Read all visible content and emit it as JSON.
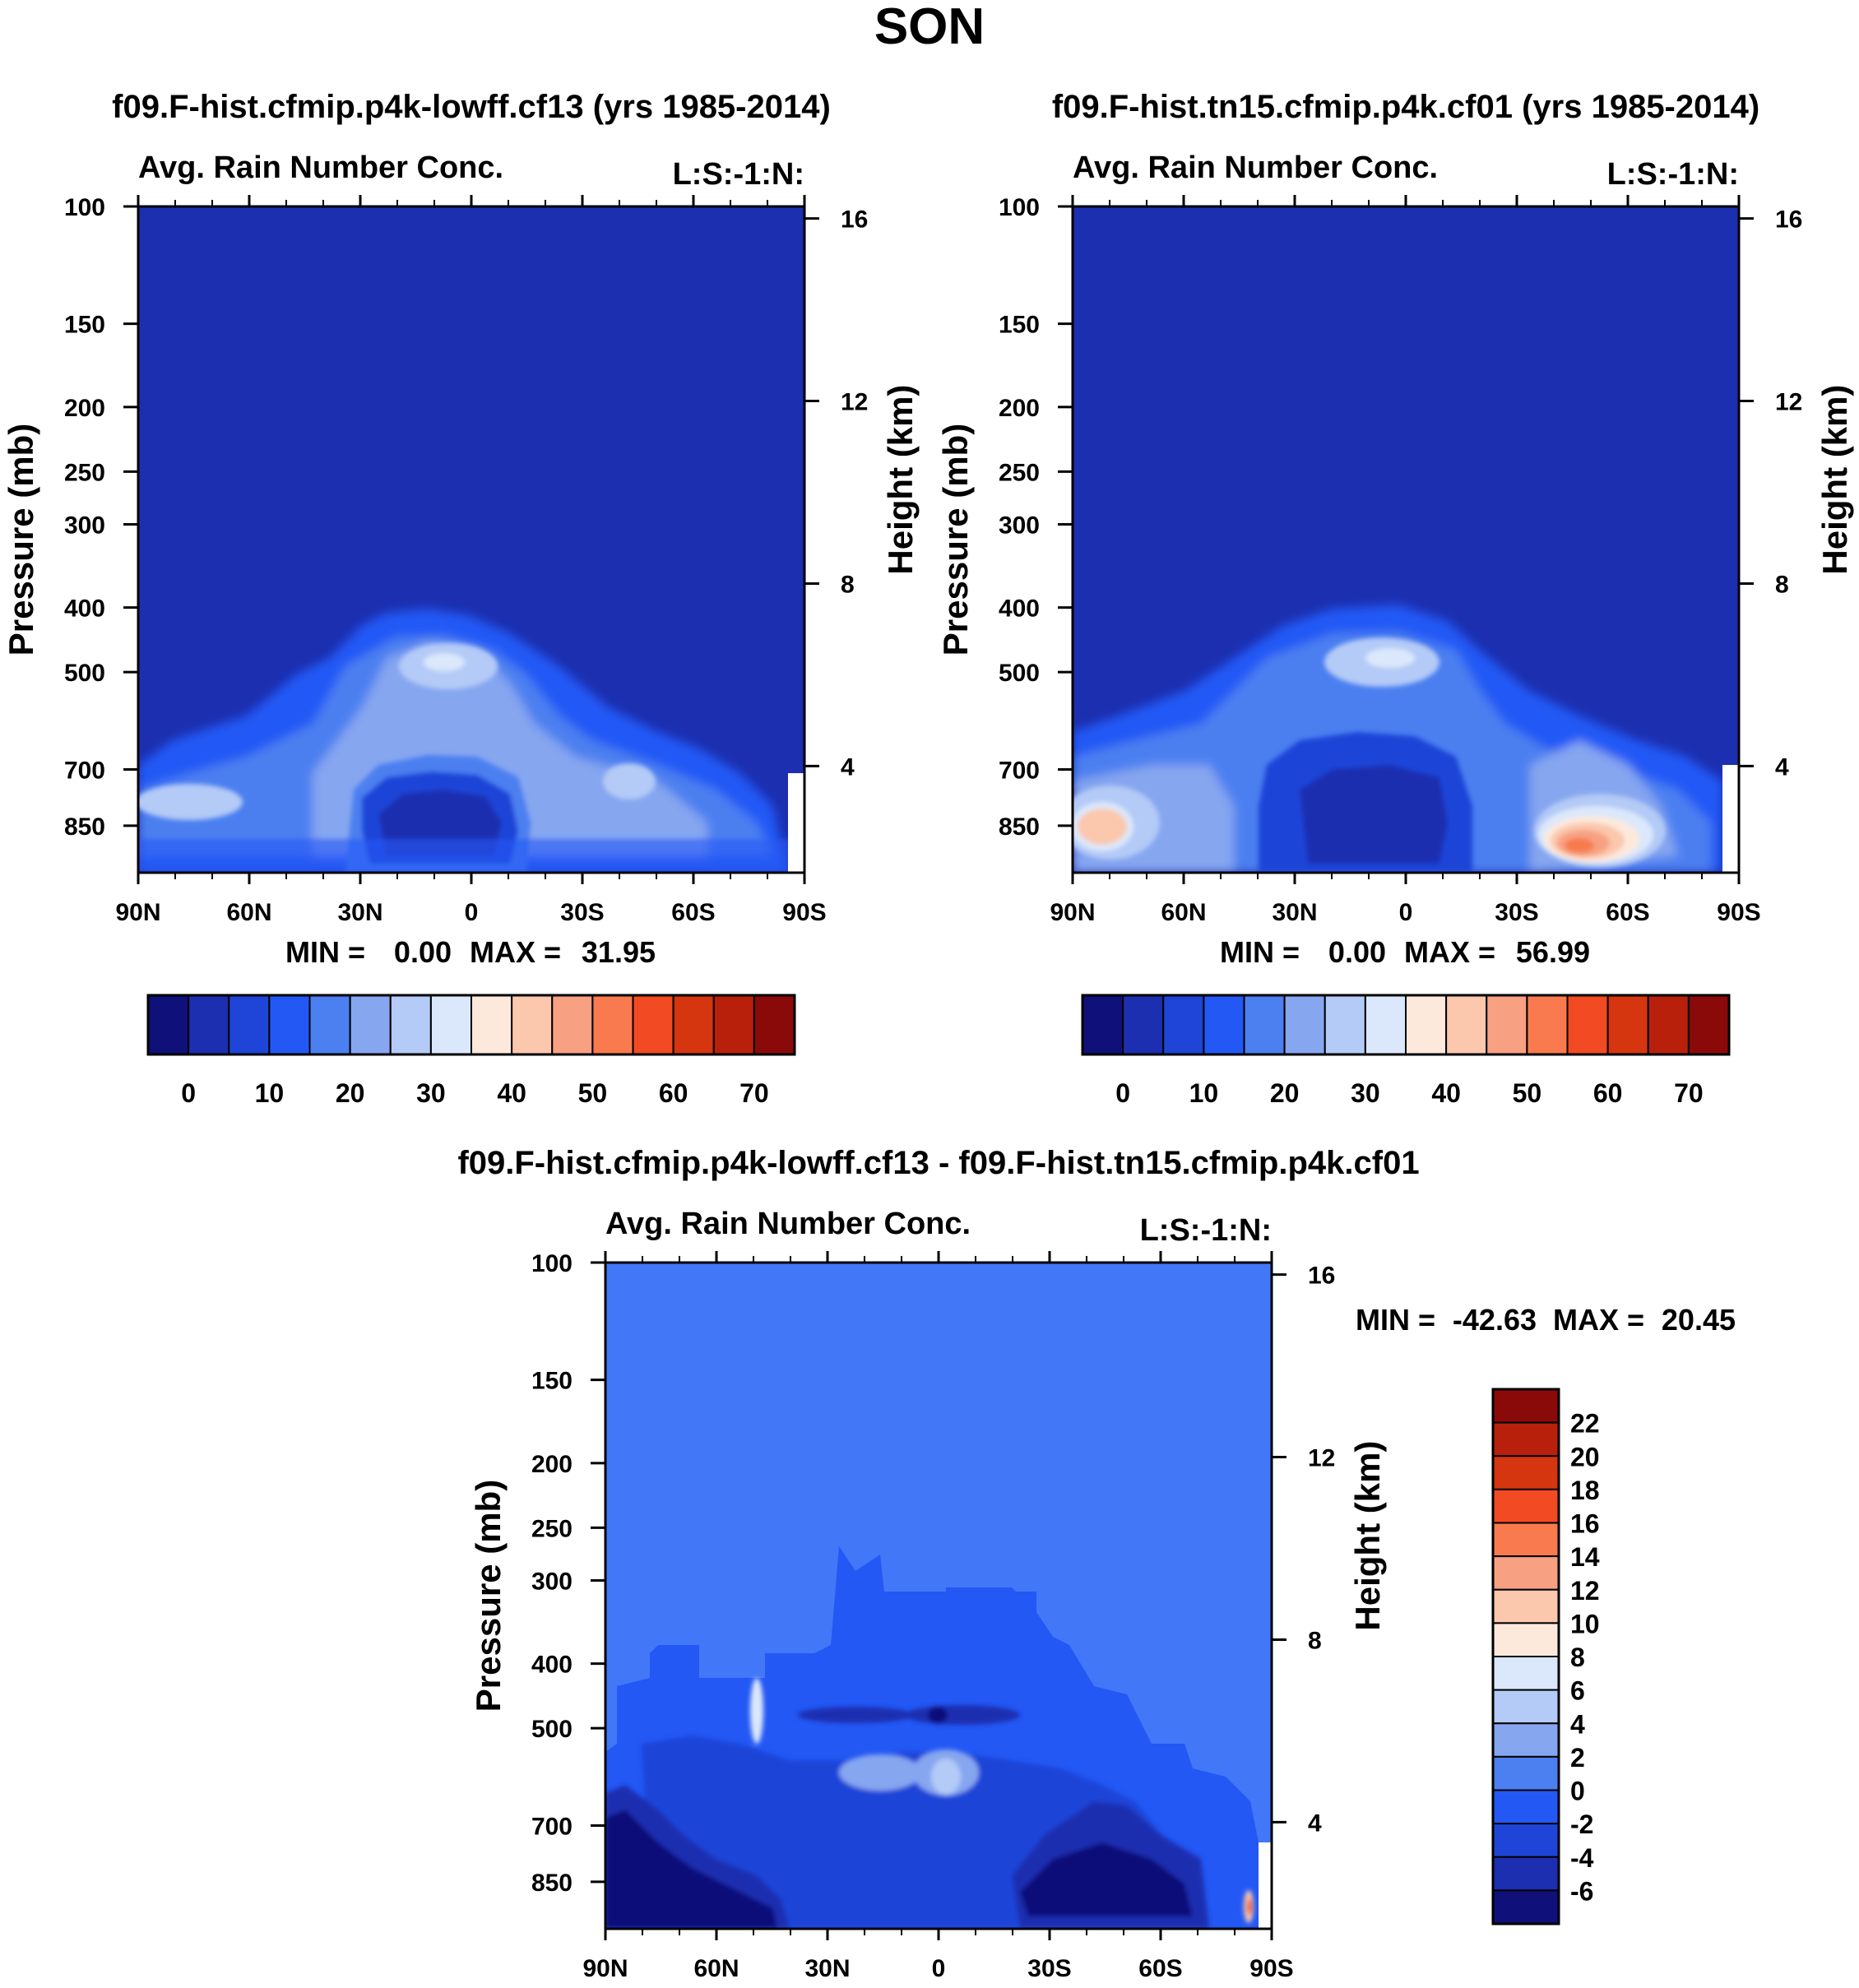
{
  "figure": {
    "title": "SON"
  },
  "palette": {
    "abs_levels": [
      "#10107a",
      "#1c2fb0",
      "#1f45d8",
      "#2358f5",
      "#4c7ff0",
      "#86a6f0",
      "#b4caf7",
      "#dbe8fb",
      "#fde9dc",
      "#fbc7ad",
      "#f7a182",
      "#f87a4e",
      "#f24a22",
      "#d5350f",
      "#b8200c",
      "#8a0a0a"
    ],
    "diff_levels": [
      "#10107a",
      "#1c2fb0",
      "#1f45d8",
      "#2358f5",
      "#4c7ff0",
      "#86a6f0",
      "#b4caf7",
      "#dbe8fb",
      "#fde9dc",
      "#fbc7ad",
      "#f7a182",
      "#f87a4e",
      "#f24a22",
      "#d5350f",
      "#b8200c",
      "#8a0a0a"
    ],
    "diff_background": "#4277f7"
  },
  "chart_data": [
    {
      "type": "heatmap",
      "title": "f09.F-hist.cfmip.p4k-lowff.cf13 (yrs 1985-2014)",
      "left_label": "Avg. Rain Number Conc.",
      "right_label": "L:S:-1:N:",
      "ylabel": "Pressure (mb)",
      "y2label": "Height (km)",
      "x_ticks": [
        "90N",
        "60N",
        "30N",
        "0",
        "30S",
        "60S",
        "90S"
      ],
      "y_ticks": [
        "100",
        "150",
        "200",
        "250",
        "300",
        "400",
        "500",
        "700",
        "850"
      ],
      "y2_ticks": [
        "16",
        "12",
        "8",
        "4"
      ],
      "stats": {
        "min_label": "MIN =",
        "min": "0.00",
        "max_label": "MAX =",
        "max": "31.95"
      },
      "colorbar": {
        "orientation": "horizontal",
        "labels": [
          "0",
          "10",
          "20",
          "30",
          "40",
          "50",
          "60",
          "70"
        ]
      },
      "features": [
        {
          "lat": 5,
          "p": 510,
          "level": 7
        },
        {
          "lat": -40,
          "p": 680,
          "level": 5
        },
        {
          "lat": 75,
          "p": 700,
          "level": 5
        },
        {
          "lat": 30,
          "p": 780,
          "level": 0
        }
      ]
    },
    {
      "type": "heatmap",
      "title": "f09.F-hist.tn15.cfmip.p4k.cf01 (yrs 1985-2014)",
      "left_label": "Avg. Rain Number Conc.",
      "right_label": "L:S:-1:N:",
      "ylabel": "Pressure (mb)",
      "y2label": "Height (km)",
      "x_ticks": [
        "90N",
        "60N",
        "30N",
        "0",
        "30S",
        "60S",
        "90S"
      ],
      "y_ticks": [
        "100",
        "150",
        "200",
        "250",
        "300",
        "400",
        "500",
        "700",
        "850"
      ],
      "y2_ticks": [
        "16",
        "12",
        "8",
        "4"
      ],
      "stats": {
        "min_label": "MIN =",
        "min": "0.00",
        "max_label": "MAX =",
        "max": "56.99"
      },
      "colorbar": {
        "orientation": "horizontal",
        "labels": [
          "0",
          "10",
          "20",
          "30",
          "40",
          "50",
          "60",
          "70"
        ]
      },
      "features": [
        {
          "lat": 0,
          "p": 510,
          "level": 7
        },
        {
          "lat": -47,
          "p": 830,
          "level": 11
        },
        {
          "lat": 82,
          "p": 800,
          "level": 9
        },
        {
          "lat": 25,
          "p": 780,
          "level": 1
        }
      ]
    },
    {
      "type": "heatmap",
      "title": "f09.F-hist.cfmip.p4k-lowff.cf13 - f09.F-hist.tn15.cfmip.p4k.cf01",
      "left_label": "Avg. Rain Number Conc.",
      "right_label": "L:S:-1:N:",
      "ylabel": "Pressure (mb)",
      "y2label": "Height (km)",
      "x_ticks": [
        "90N",
        "60N",
        "30N",
        "0",
        "30S",
        "60S",
        "90S"
      ],
      "y_ticks": [
        "100",
        "150",
        "200",
        "250",
        "300",
        "400",
        "500",
        "700",
        "850"
      ],
      "y2_ticks": [
        "16",
        "12",
        "8",
        "4"
      ],
      "stats": {
        "min_label": "MIN =",
        "min": "-42.63",
        "max_label": "MAX =",
        "max": "20.45"
      },
      "colorbar": {
        "orientation": "vertical",
        "labels": [
          "22",
          "20",
          "18",
          "16",
          "14",
          "12",
          "10",
          "8",
          "6",
          "4",
          "2",
          "0",
          "-2",
          "-4",
          "-6"
        ]
      },
      "features": [
        {
          "lat": 78,
          "p": 800,
          "level": 0
        },
        {
          "lat": -48,
          "p": 800,
          "level": 0
        },
        {
          "lat": 0,
          "p": 560,
          "level": 6
        },
        {
          "lat": -85,
          "p": 830,
          "level": 12
        }
      ]
    }
  ]
}
